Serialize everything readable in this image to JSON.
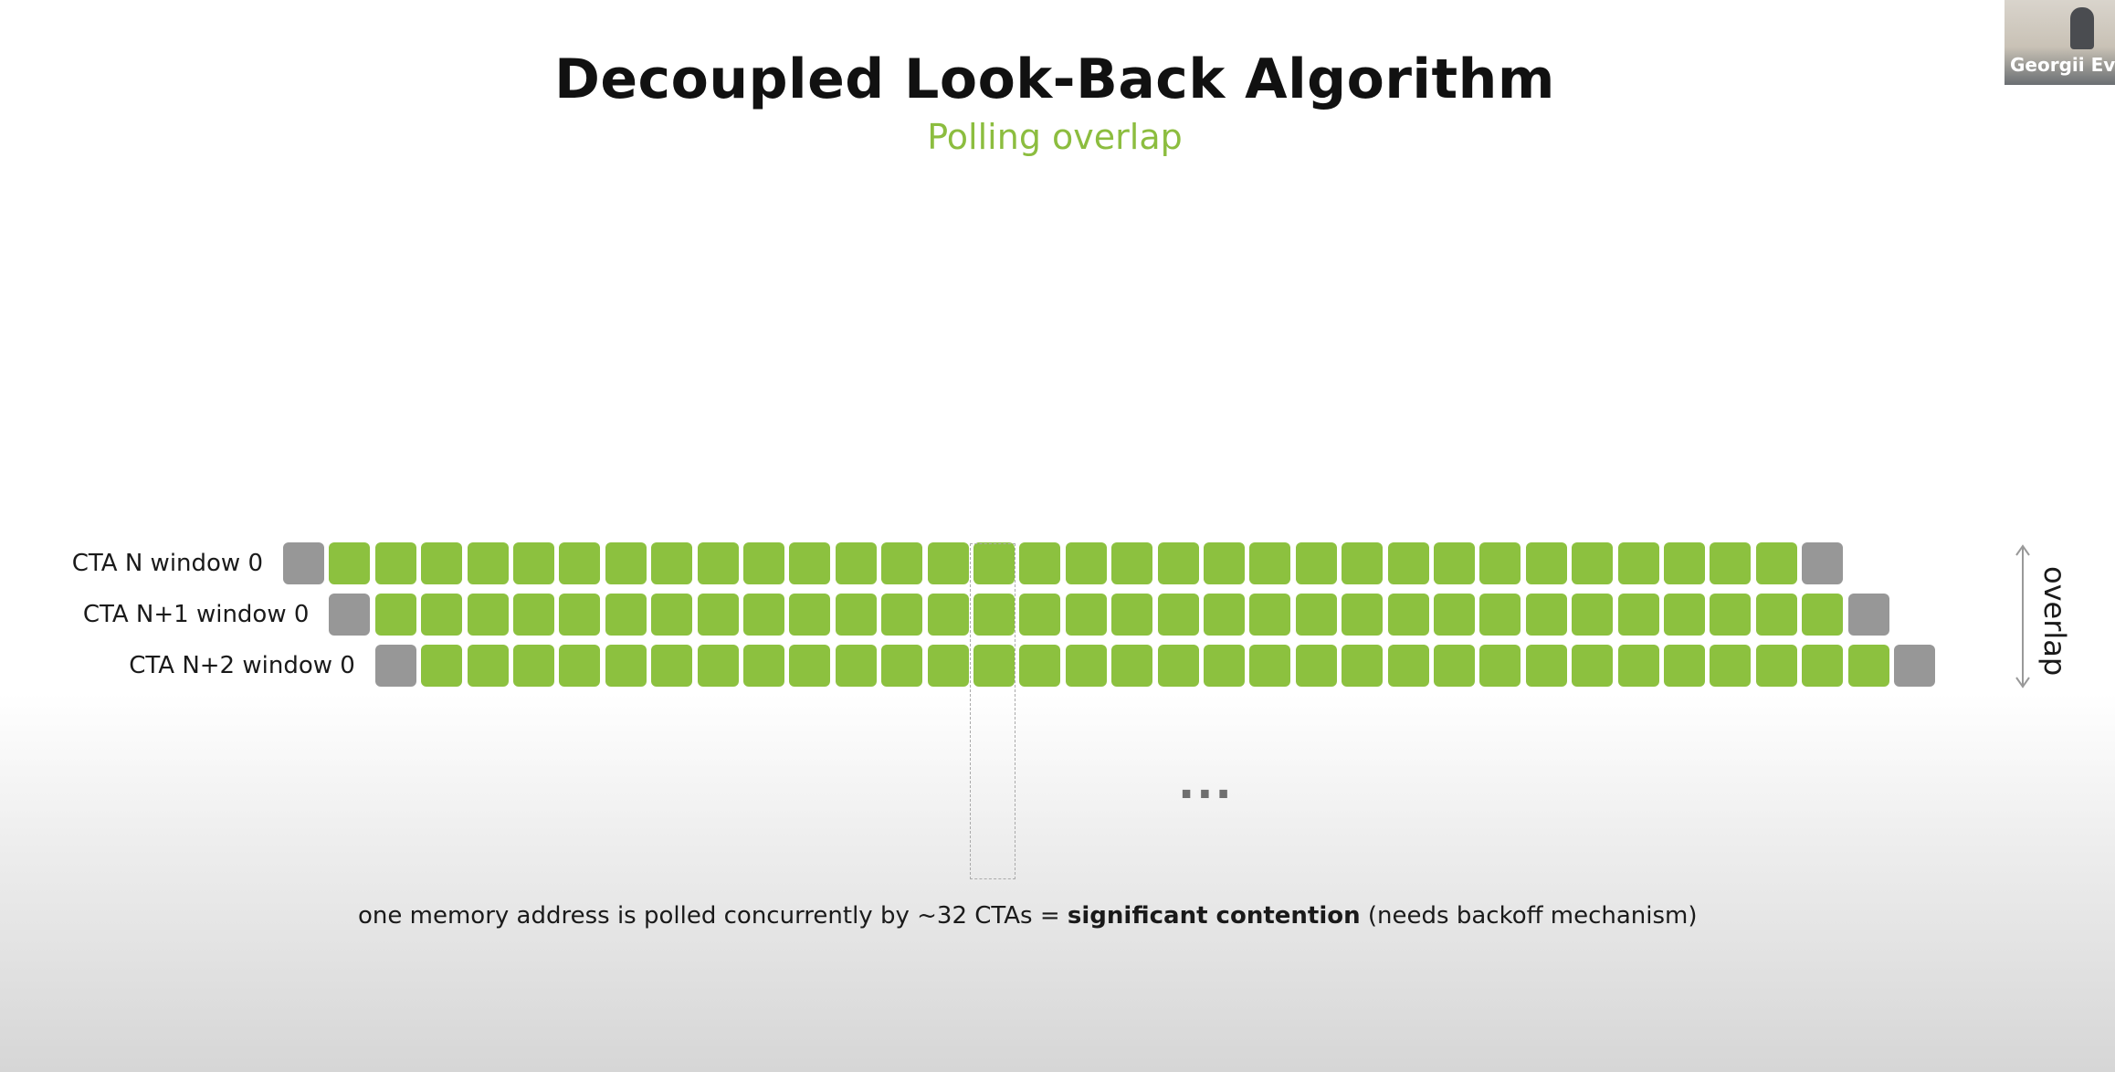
{
  "slide": {
    "title": "Decoupled Look-Back Algorithm",
    "subtitle": "Polling overlap"
  },
  "rows": [
    {
      "label": "CTA N window 0",
      "green_count": 32
    },
    {
      "label": "CTA N+1 window 0",
      "green_count": 32
    },
    {
      "label": "CTA N+2 window 0",
      "green_count": 32
    }
  ],
  "colors": {
    "active_cell": "#8cc13f",
    "boundary_cell": "#979797",
    "subtitle": "#8cbd3f"
  },
  "ellipsis": "...",
  "overlap_label": "overlap",
  "caption": {
    "prefix": "one memory address is polled concurrently by ~32 CTAs = ",
    "emphasis": "significant contention",
    "suffix": " (needs backoff mechanism)"
  },
  "presenter": {
    "name": "Georgii Evtu"
  }
}
